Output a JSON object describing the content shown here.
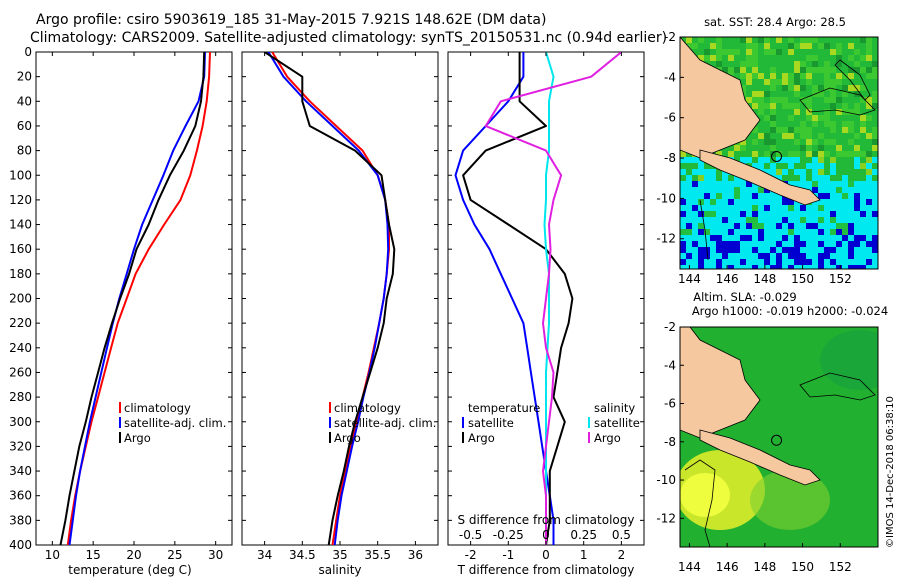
{
  "title_line1": "Argo profile: csiro 5903619_185 31-May-2015 7.921S 148.62E (DM data)",
  "title_line2": "Climatology: CARS2009. Satellite-adjusted climatology: synTS_20150531.nc (0.94d earlier)",
  "credit": "©IMOS 14-Dec-2018 06:38:10",
  "colors": {
    "climatology": "#ff0000",
    "satellite": "#0000ff",
    "argo": "#000000",
    "salinity_satellite": "#00e5ee",
    "salinity_argo": "#e020e0",
    "land": "#f5c8a0"
  },
  "depth_axis": {
    "ticks": [
      0,
      20,
      40,
      60,
      80,
      100,
      120,
      140,
      160,
      180,
      200,
      220,
      240,
      260,
      280,
      300,
      320,
      340,
      360,
      380,
      400
    ],
    "range": [
      0,
      400
    ]
  },
  "chart_data": [
    {
      "type": "line",
      "name": "temperature-panel",
      "xlabel": "temperature (deg C)",
      "xlim": [
        8,
        32
      ],
      "xticks": [
        10,
        15,
        20,
        25,
        30
      ],
      "ylim": [
        0,
        400
      ],
      "legend": [
        "climatology",
        "satellite-adj. clim.",
        "Argo"
      ],
      "series": [
        {
          "name": "climatology",
          "depth": [
            0,
            20,
            40,
            60,
            80,
            100,
            120,
            140,
            160,
            180,
            200,
            220,
            240,
            260,
            280,
            300,
            320,
            340,
            360,
            380,
            400
          ],
          "values": [
            29.3,
            29.2,
            28.9,
            28.4,
            27.7,
            26.9,
            25.7,
            23.7,
            21.8,
            20.2,
            19.1,
            18.0,
            17.2,
            16.4,
            15.6,
            14.8,
            14.1,
            13.4,
            12.8,
            12.3,
            11.9
          ]
        },
        {
          "name": "satellite-adj. clim.",
          "depth": [
            0,
            20,
            40,
            60,
            80,
            100,
            120,
            140,
            160,
            180,
            200,
            220,
            240,
            260,
            280,
            300,
            320,
            340,
            360,
            380,
            400
          ],
          "values": [
            28.7,
            28.6,
            27.9,
            26.3,
            24.8,
            23.6,
            22.3,
            21.0,
            20.0,
            19.1,
            18.2,
            17.4,
            16.7,
            16.0,
            15.3,
            14.6,
            14.0,
            13.4,
            12.9,
            12.5,
            12.1
          ]
        },
        {
          "name": "Argo",
          "depth": [
            0,
            20,
            40,
            60,
            80,
            100,
            120,
            140,
            160,
            180,
            200,
            220,
            240,
            260,
            280,
            300,
            320,
            340,
            360,
            380,
            400
          ],
          "values": [
            28.6,
            28.5,
            28.2,
            27.5,
            26.1,
            24.4,
            23.0,
            21.8,
            20.3,
            19.4,
            18.3,
            17.3,
            16.4,
            15.6,
            14.8,
            14.1,
            13.3,
            12.7,
            12.1,
            11.6,
            11.0
          ]
        }
      ]
    },
    {
      "type": "line",
      "name": "salinity-panel",
      "xlabel": "salinity",
      "xlim": [
        33.7,
        36.3
      ],
      "xticks": [
        34,
        34.5,
        35,
        35.5,
        36
      ],
      "xticklabels": [
        "34",
        "34.5",
        "35",
        "35.5",
        "36"
      ],
      "ylim": [
        0,
        400
      ],
      "legend": [
        "climatology",
        "satellite-adj. clim.",
        "Argo"
      ],
      "series": [
        {
          "name": "climatology",
          "depth": [
            0,
            20,
            40,
            60,
            80,
            100,
            120,
            140,
            160,
            180,
            200,
            220,
            240,
            260,
            280,
            300,
            320,
            340,
            360,
            380,
            400
          ],
          "values": [
            34.1,
            34.3,
            34.6,
            34.95,
            35.3,
            35.5,
            35.6,
            35.65,
            35.65,
            35.62,
            35.58,
            35.52,
            35.45,
            35.38,
            35.3,
            35.22,
            35.14,
            35.07,
            35.0,
            34.95,
            34.9
          ]
        },
        {
          "name": "satellite-adj. clim.",
          "depth": [
            0,
            20,
            40,
            60,
            80,
            100,
            120,
            140,
            160,
            180,
            200,
            220,
            240,
            260,
            280,
            300,
            320,
            340,
            360,
            380,
            400
          ],
          "values": [
            34.05,
            34.25,
            34.55,
            34.9,
            35.25,
            35.5,
            35.6,
            35.63,
            35.64,
            35.62,
            35.58,
            35.52,
            35.46,
            35.39,
            35.31,
            35.24,
            35.16,
            35.09,
            35.02,
            34.97,
            34.93
          ]
        },
        {
          "name": "Argo",
          "depth": [
            0,
            20,
            40,
            60,
            80,
            100,
            120,
            140,
            160,
            180,
            200,
            220,
            240,
            260,
            280,
            300,
            320,
            340,
            360,
            380,
            400
          ],
          "values": [
            34.0,
            34.5,
            34.5,
            34.6,
            35.2,
            35.55,
            35.6,
            35.65,
            35.72,
            35.7,
            35.62,
            35.58,
            35.5,
            35.4,
            35.3,
            35.2,
            35.12,
            35.05,
            34.97,
            34.9,
            34.85
          ]
        }
      ]
    },
    {
      "type": "line",
      "name": "difference-panel",
      "xlabel": "T difference from climatology",
      "xlabel_top": "S difference from climatology",
      "xlim": [
        -2.6,
        2.6
      ],
      "xticks": [
        -2,
        -1,
        0,
        1,
        2
      ],
      "xticks_s": [
        -0.5,
        -0.25,
        0,
        0.25,
        0.5
      ],
      "xticklabels_s": [
        "-0.5",
        "-0.25",
        "0",
        "0.25",
        "0.5"
      ],
      "ylim": [
        0,
        400
      ],
      "legend_left": {
        "heading": "temperature",
        "items": [
          "satellite",
          "Argo"
        ]
      },
      "legend_right": {
        "heading": "salinity",
        "items": [
          "satellite",
          "Argo"
        ]
      },
      "series": [
        {
          "name": "temperature satellite",
          "depth": [
            0,
            20,
            40,
            60,
            80,
            100,
            120,
            140,
            160,
            180,
            200,
            220,
            240,
            260,
            280,
            300,
            320,
            340,
            360,
            380,
            400
          ],
          "values": [
            -0.6,
            -0.6,
            -1.0,
            -1.6,
            -2.2,
            -2.4,
            -2.2,
            -1.9,
            -1.5,
            -1.2,
            -0.9,
            -0.6,
            -0.5,
            -0.4,
            -0.3,
            -0.2,
            -0.1,
            0.0,
            0.1,
            0.2,
            0.2
          ]
        },
        {
          "name": "temperature Argo",
          "depth": [
            0,
            20,
            40,
            60,
            80,
            100,
            120,
            140,
            160,
            180,
            200,
            220,
            240,
            260,
            280,
            300,
            320,
            340,
            360,
            380,
            400
          ],
          "values": [
            -0.7,
            -0.7,
            -0.7,
            0.0,
            -1.6,
            -2.2,
            -2.0,
            -1.0,
            0.0,
            0.5,
            0.7,
            0.6,
            0.4,
            0.3,
            0.2,
            0.5,
            0.3,
            0.1,
            0.1,
            0.1,
            0.0
          ]
        },
        {
          "name": "salinity satellite",
          "depth": [
            0,
            20,
            40,
            60,
            80,
            100,
            120,
            140,
            160,
            180,
            200,
            220,
            240,
            260,
            280,
            300,
            320,
            340,
            360,
            380,
            400
          ],
          "values": [
            0.0,
            0.05,
            0.02,
            0.02,
            0.02,
            0.0,
            0.0,
            -0.01,
            0.0,
            0.02,
            0.02,
            0.02,
            0.01,
            0.0,
            0.0,
            0.0,
            0.0,
            0.0,
            0.0,
            0.0,
            0.0
          ]
        },
        {
          "name": "salinity Argo",
          "depth": [
            0,
            20,
            40,
            60,
            80,
            100,
            120,
            140,
            160,
            180,
            200,
            220,
            240,
            260,
            280,
            300,
            320,
            340,
            360,
            380,
            400
          ],
          "values": [
            0.5,
            0.3,
            -0.3,
            -0.4,
            0.0,
            0.1,
            0.05,
            0.02,
            0.03,
            0.02,
            0.0,
            -0.02,
            0.0,
            0.05,
            0.04,
            0.02,
            0.0,
            -0.02,
            0.0,
            0.0,
            0.0
          ]
        }
      ]
    },
    {
      "type": "heatmap",
      "name": "sst-map",
      "title": "sat. SST: 28.4 Argo: 28.5",
      "xticks": [
        144,
        146,
        148,
        150,
        152
      ],
      "yticks": [
        -2,
        -4,
        -6,
        -8,
        -10,
        -12
      ],
      "xlim": [
        143.5,
        154
      ],
      "ylim": [
        -13.5,
        -2
      ],
      "argo_position": {
        "lon": 148.62,
        "lat": -7.921
      }
    },
    {
      "type": "heatmap",
      "name": "sla-map",
      "title_line1": "Altim. SLA: -0.029",
      "title_line2": "Argo h1000: -0.019 h2000: -0.024",
      "xticks": [
        144,
        146,
        148,
        150,
        152
      ],
      "yticks": [
        -2,
        -4,
        -6,
        -8,
        -10,
        -12
      ],
      "xlim": [
        143.5,
        154
      ],
      "ylim": [
        -13.5,
        -2
      ],
      "argo_position": {
        "lon": 148.62,
        "lat": -7.921
      }
    }
  ]
}
